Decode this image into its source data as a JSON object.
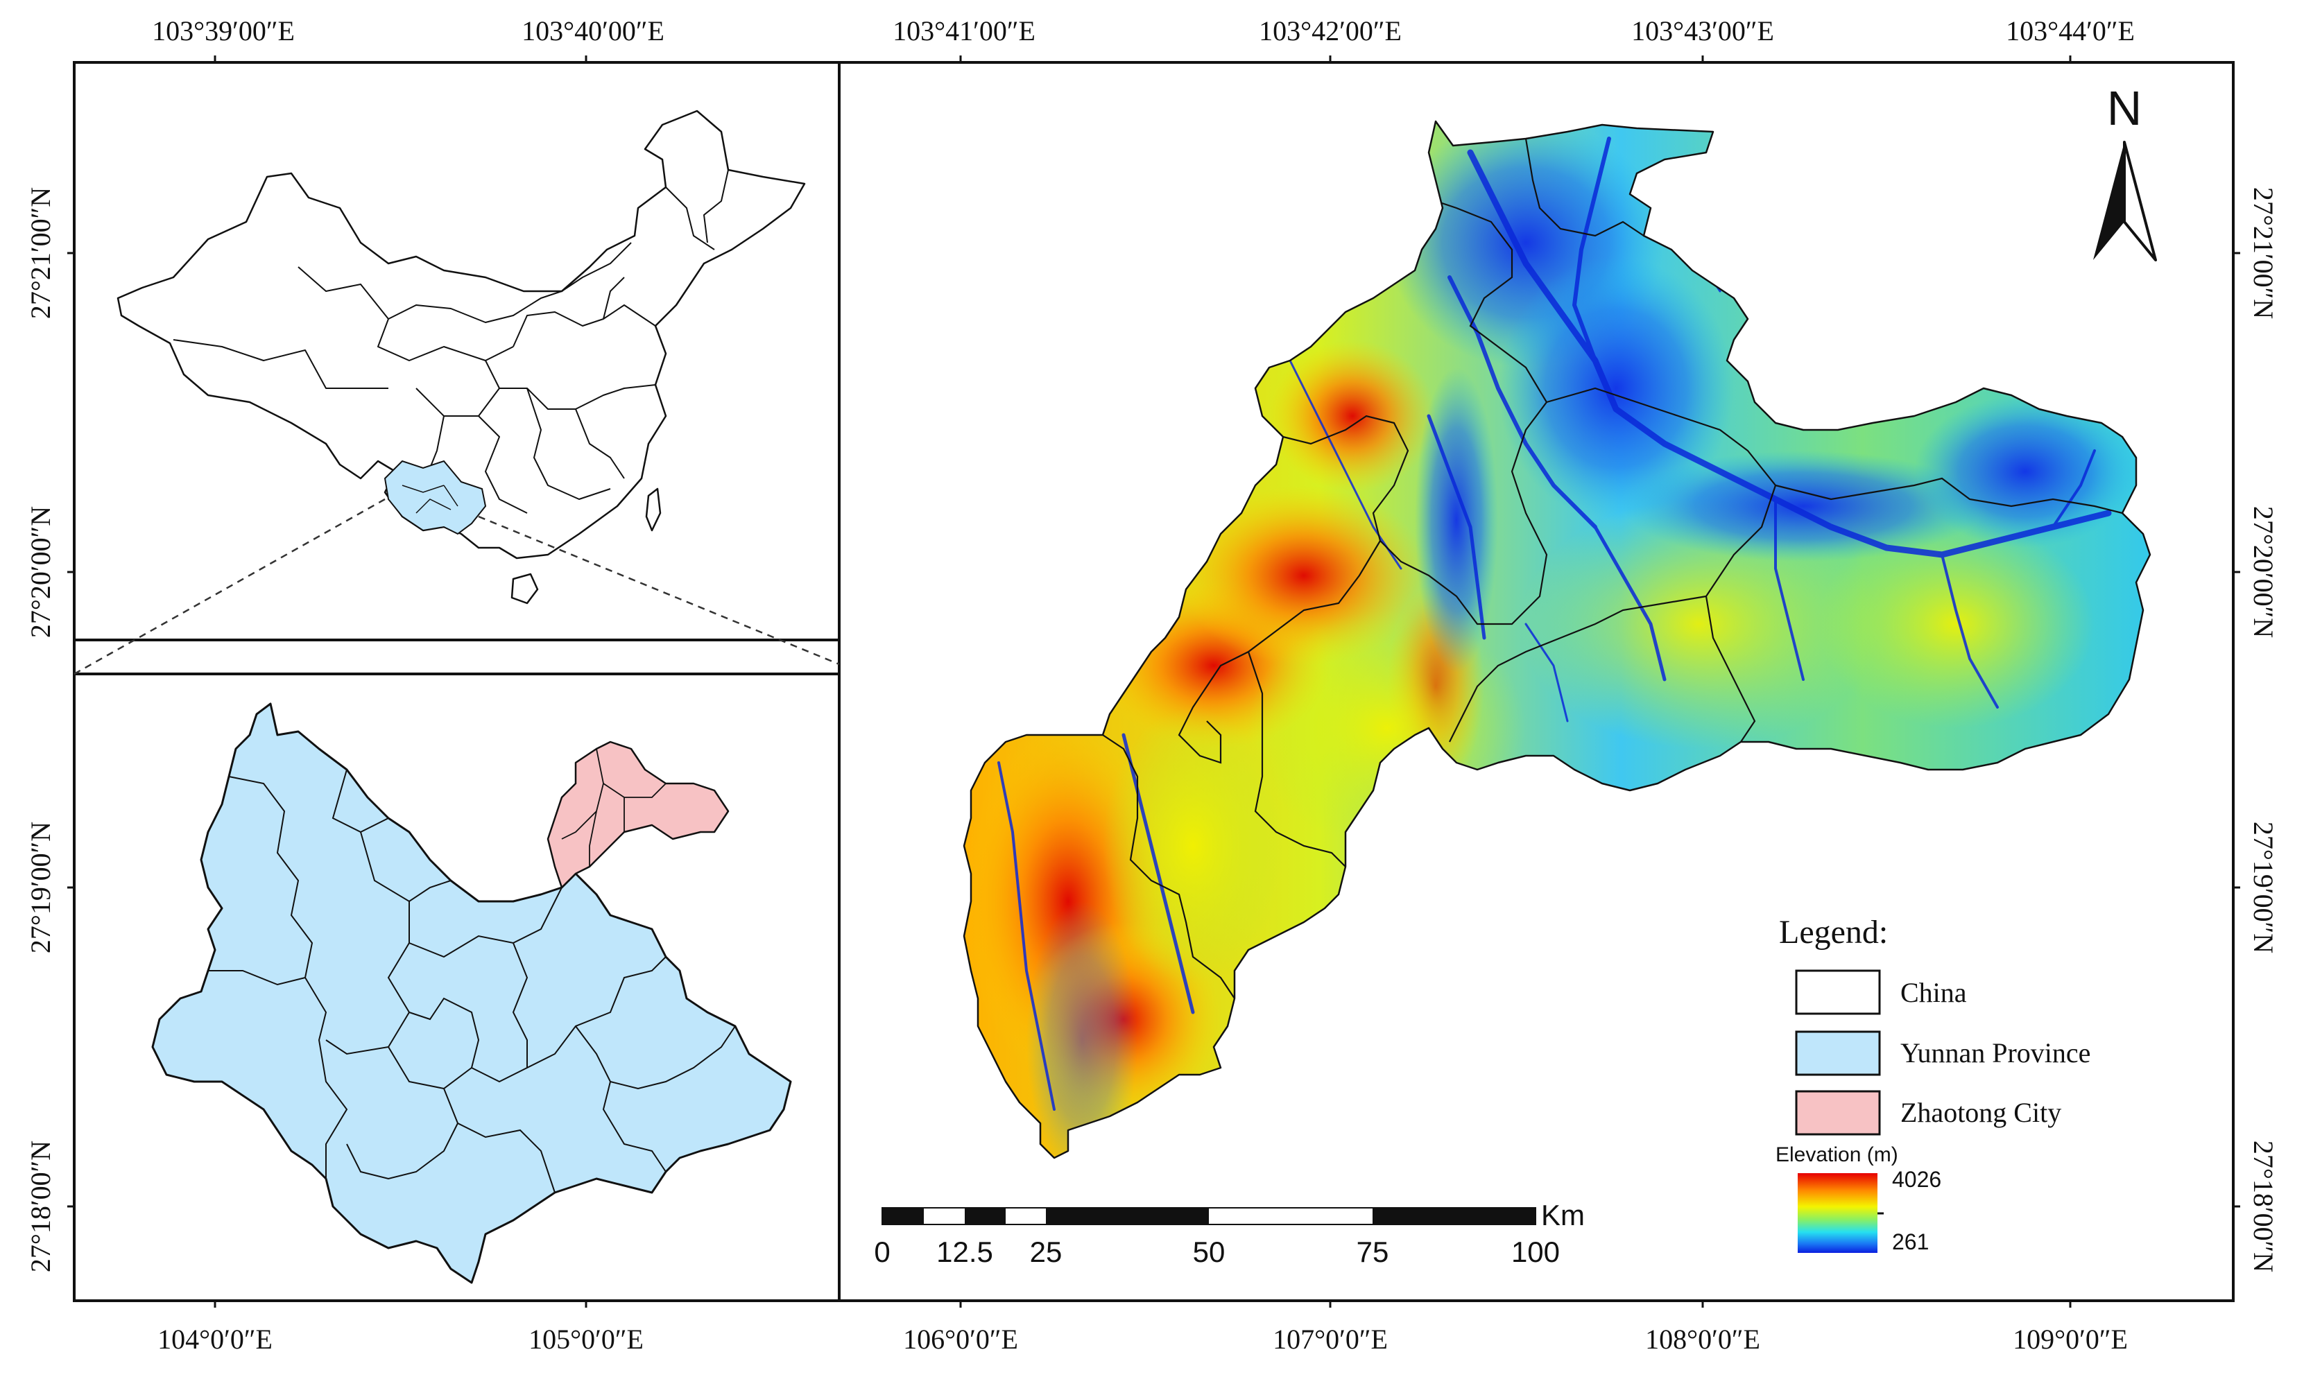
{
  "top_axis_labels": [
    "103°39′00″E",
    "103°40′00″E",
    "103°41′00″E",
    "103°42′00″E",
    "103°43′00″E",
    "103°44′0″E"
  ],
  "bottom_axis_labels": [
    "104°0′0″E",
    "105°0′0″E",
    "106°0′0″E",
    "107°0′0″E",
    "108°0′0″E",
    "109°0′0″E"
  ],
  "left_axis_labels": [
    "27°21′00″N",
    "27°20′00″N",
    "27°19′00″N",
    "27°18′00″N"
  ],
  "right_axis_labels": [
    "27°21′00″N",
    "27°20′00″N",
    "27°19′00″N",
    "27°18′00″N"
  ],
  "north_arrow": {
    "letter": "N",
    "icon": "north-arrow-icon"
  },
  "legend": {
    "title": "Legend:",
    "items": [
      {
        "label": "China",
        "color": "#ffffff"
      },
      {
        "label": "Yunnan Province",
        "color": "#bfe6fb"
      },
      {
        "label": "Zhaotong City",
        "color": "#f7c2c4"
      }
    ]
  },
  "elevation": {
    "title": "Elevation (m)",
    "max": "4026",
    "min": "261"
  },
  "scale_bar": {
    "labels": [
      "0",
      "12.5",
      "25",
      "50",
      "75",
      "100"
    ],
    "unit": "Km"
  },
  "colors": {
    "yunnan": "#bfe6fb",
    "zhaotong": "#f7c2c4",
    "border": "#1a1a1a"
  }
}
